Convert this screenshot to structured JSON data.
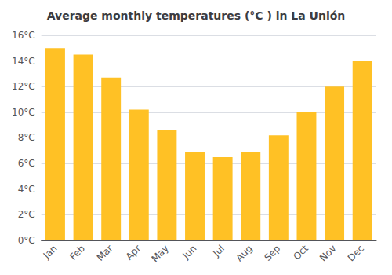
{
  "chart_data": {
    "type": "bar",
    "title": "Average monthly temperatures (°C ) in La Unión",
    "categories": [
      "Jan",
      "Feb",
      "Mar",
      "Apr",
      "May",
      "Jun",
      "Jul",
      "Aug",
      "Sep",
      "Oct",
      "Nov",
      "Dec"
    ],
    "values": [
      15.0,
      14.5,
      12.7,
      10.2,
      8.6,
      6.9,
      6.5,
      6.9,
      8.2,
      10.0,
      12.0,
      14.0
    ],
    "color": "#FFC125",
    "ylim": [
      0,
      16
    ],
    "yticks": [
      {
        "value": 0,
        "label": "0°C"
      },
      {
        "value": 2,
        "label": "2°C"
      },
      {
        "value": 4,
        "label": "4°C"
      },
      {
        "value": 6,
        "label": "6°C"
      },
      {
        "value": 8,
        "label": "8°C"
      },
      {
        "value": 10,
        "label": "10°C"
      },
      {
        "value": 12,
        "label": "12°C"
      },
      {
        "value": 14,
        "label": "14°C"
      },
      {
        "value": 16,
        "label": "16°C"
      }
    ],
    "grid": true
  }
}
